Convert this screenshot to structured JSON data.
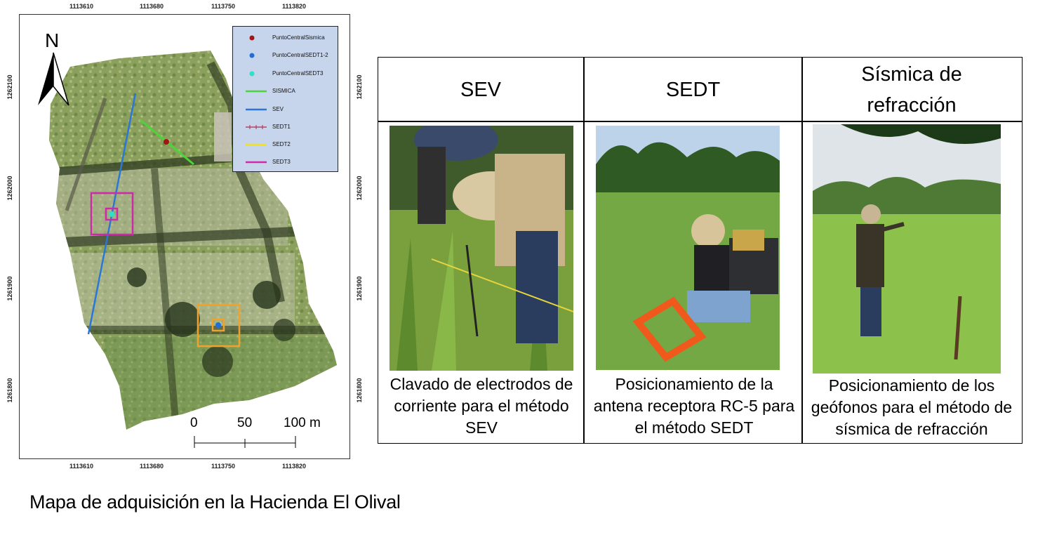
{
  "map": {
    "x_ticks": [
      "1113610",
      "1113680",
      "1113750",
      "1113820"
    ],
    "y_ticks": [
      "1262100",
      "1262000",
      "1261900",
      "1261800"
    ],
    "north_label": "N",
    "legend": [
      {
        "label": "PuntoCentralSismica",
        "symbol": "dot",
        "color": "#a31515"
      },
      {
        "label": "PuntoCentralSEDT1-2",
        "symbol": "dot",
        "color": "#1f6fd6"
      },
      {
        "label": "PuntoCentralSEDT3",
        "symbol": "dot",
        "color": "#2fe0c8"
      },
      {
        "label": "SISMICA",
        "symbol": "line",
        "color": "#4cd43a"
      },
      {
        "label": "SEV",
        "symbol": "line",
        "color": "#2a77d8"
      },
      {
        "label": "SEDT1",
        "symbol": "tick-line",
        "color": "#b0294a"
      },
      {
        "label": "SEDT2",
        "symbol": "line",
        "color": "#f2e11c"
      },
      {
        "label": "SEDT3",
        "symbol": "line",
        "color": "#cc2aa8"
      }
    ],
    "scale": {
      "labels": [
        "0",
        "50",
        "100 m"
      ]
    },
    "caption": "Mapa de adquisición en la Hacienda El Olival"
  },
  "table": {
    "headers": [
      "SEV",
      "SEDT",
      "Sísmica de refracción"
    ],
    "captions": [
      "Clavado de electrodos de corriente para el método SEV",
      "Posicionamiento de la antena receptora RC-5 para el método SEDT",
      "Posicionamiento de los geófonos para el método de sísmica de refracción"
    ]
  }
}
